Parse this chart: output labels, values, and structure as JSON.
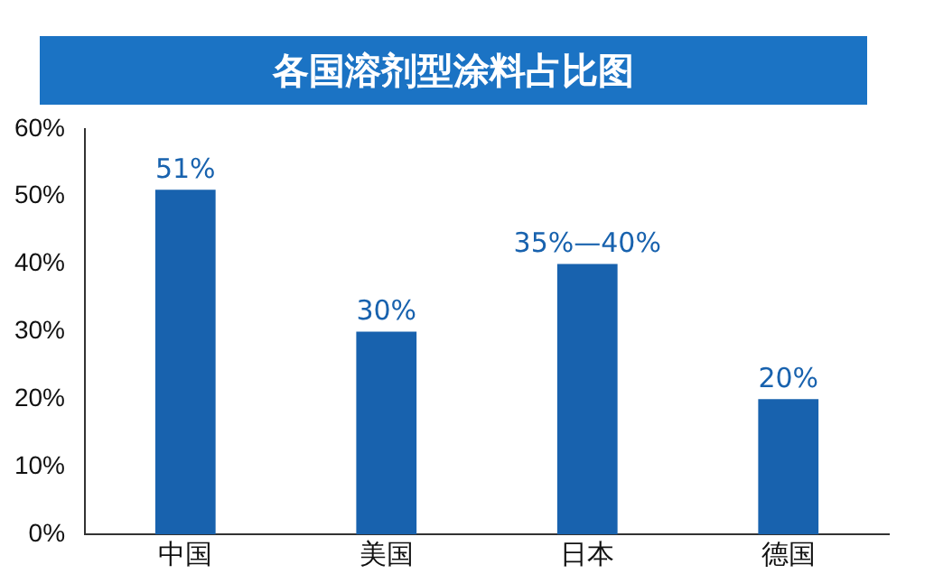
{
  "chart_data": {
    "type": "bar",
    "title": "各国溶剂型涂料占比图",
    "categories": [
      "中国",
      "美国",
      "日本",
      "德国"
    ],
    "values": [
      51,
      30,
      40,
      20
    ],
    "value_labels": [
      "51%",
      "30%",
      "35%—40%",
      "20%"
    ],
    "color": "#1862ae",
    "ylim": [
      0,
      60
    ],
    "yticks": [
      {
        "value": 0,
        "label": "0%"
      },
      {
        "value": 10,
        "label": "10%"
      },
      {
        "value": 20,
        "label": "20%"
      },
      {
        "value": 30,
        "label": "30%"
      },
      {
        "value": 40,
        "label": "40%"
      },
      {
        "value": 50,
        "label": "50%"
      },
      {
        "value": 60,
        "label": "60%"
      }
    ],
    "grid": false,
    "legend": false
  }
}
